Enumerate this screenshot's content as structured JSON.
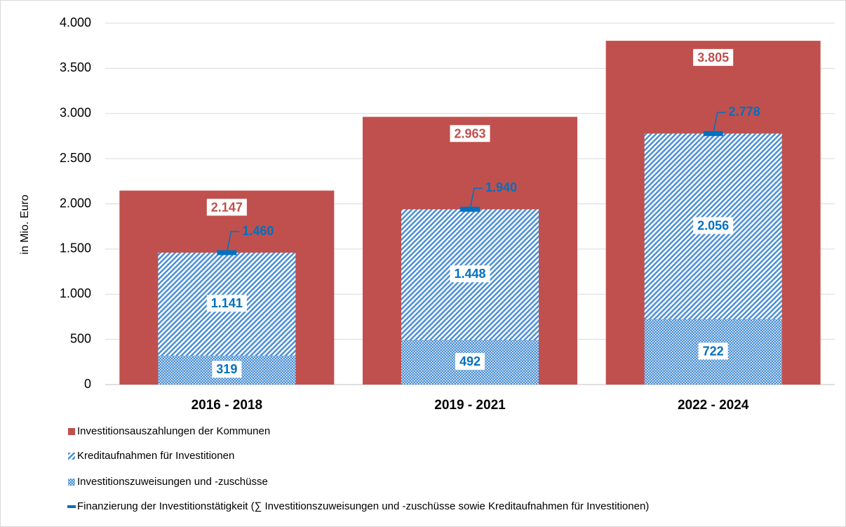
{
  "chart_data": {
    "type": "bar",
    "y_axis_label": "in Mio. Euro",
    "categories": [
      "2016 - 2018",
      "2019 - 2021",
      "2022 - 2024"
    ],
    "ylim": [
      0,
      4000
    ],
    "yticks": [
      0,
      500,
      {
        "value": 1000,
        "label": "1.000"
      },
      {
        "value": 1500,
        "label": "1.500"
      },
      {
        "value": 2000,
        "label": "2.000"
      },
      {
        "value": 2500,
        "label": "2.500"
      },
      {
        "value": 3000,
        "label": "3.000"
      },
      {
        "value": 3500,
        "label": "3.500"
      },
      {
        "value": 4000,
        "label": "4.000"
      }
    ],
    "grid": true,
    "series": [
      {
        "name": "Investitionsauszahlungen der Kommunen",
        "color": "#c0504d",
        "values": [
          2147,
          2963,
          3805
        ],
        "value_labels": [
          "2.147",
          "2.963",
          "3.805"
        ]
      },
      {
        "name": "Kreditaufnahmen für Investitionen",
        "color": "#4a8fd6",
        "values": [
          1141,
          1448,
          2056
        ],
        "value_labels": [
          "1.141",
          "1.448",
          "2.056"
        ]
      },
      {
        "name": "Investitionszuweisungen und -zuschüsse",
        "color": "#4a8fd6",
        "values": [
          319,
          492,
          722
        ]
      },
      {
        "name": "Finanzierung der Investitionstätigkeit (∑ Investitionszuweisungen und -zuschüsse sowie Kreditaufnahmen für Investitionen)",
        "color": "#0070c0",
        "values": [
          1460,
          1940,
          2778
        ],
        "value_labels": [
          "1.460",
          "1.940",
          "2.778"
        ]
      }
    ]
  }
}
